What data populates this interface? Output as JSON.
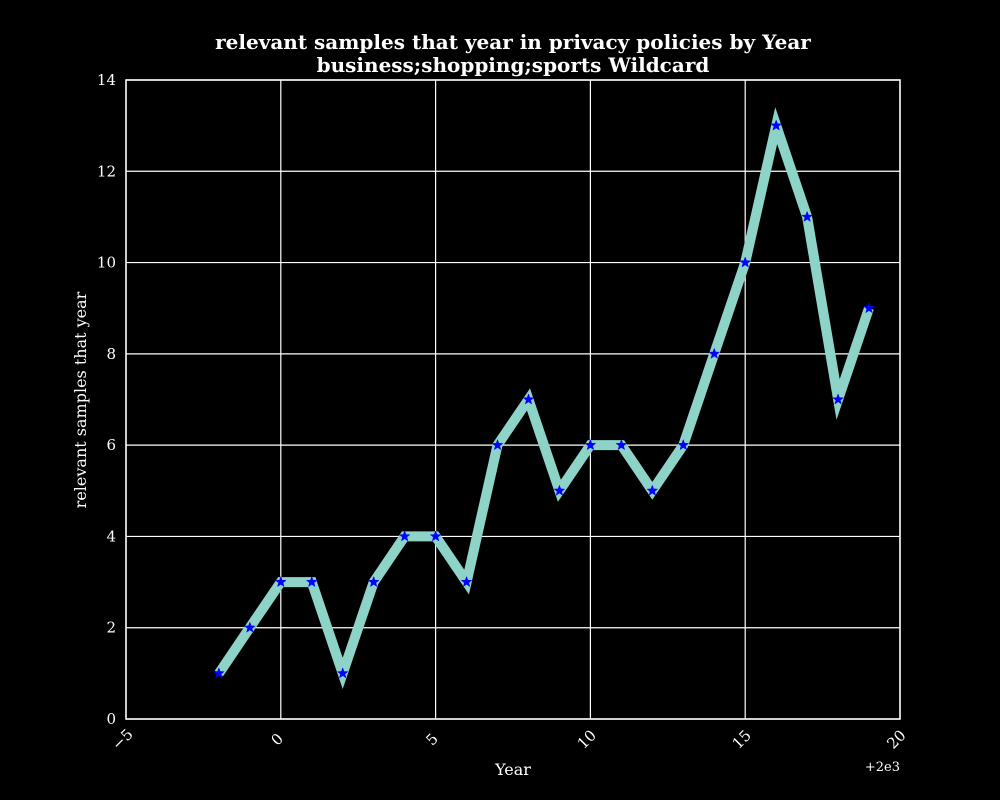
{
  "chart_data": {
    "type": "line",
    "title": [
      "relevant samples that year in privacy policies by Year",
      "business;shopping;sports Wildcard"
    ],
    "xlabel": "Year",
    "ylabel": "relevant samples that year",
    "x_offset_label": "+2e3",
    "x_offset": 2000,
    "xlim": [
      -5,
      20
    ],
    "ylim": [
      0,
      14
    ],
    "xticks": [
      -5,
      0,
      5,
      10,
      15,
      20
    ],
    "xtick_labels": [
      "−5",
      "0",
      "5",
      "10",
      "15",
      "20"
    ],
    "yticks": [
      0,
      2,
      4,
      6,
      8,
      10,
      12,
      14
    ],
    "ytick_labels": [
      "0",
      "2",
      "4",
      "6",
      "8",
      "10",
      "12",
      "14"
    ],
    "grid": true,
    "series": [
      {
        "x": [
          -2,
          -1,
          0,
          1,
          2,
          3,
          4,
          5,
          6,
          7,
          8,
          9,
          10,
          11,
          12,
          13,
          14,
          15,
          16,
          17,
          18,
          19
        ],
        "values": [
          1,
          2,
          3,
          3,
          1,
          3,
          4,
          4,
          3,
          6,
          7,
          5,
          6,
          6,
          5,
          6,
          8,
          10,
          13,
          11,
          7,
          9
        ],
        "line_color": "#8dd3c7",
        "marker_color": "#0000ff",
        "marker": "star"
      }
    ]
  },
  "colors": {
    "background": "#000000",
    "axes": "#ffffff",
    "grid": "#ffffff",
    "text": "#ffffff"
  }
}
